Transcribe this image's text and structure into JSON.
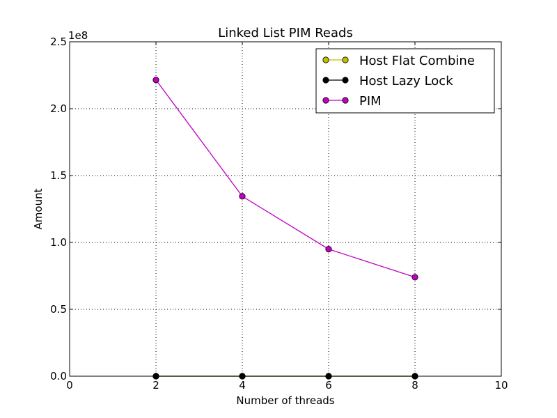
{
  "chart_data": {
    "type": "line",
    "title": "Linked List PIM Reads",
    "xlabel": "Number of threads",
    "ylabel": "Amount",
    "y_offset_label": "1e8",
    "xlim": [
      0,
      10
    ],
    "ylim": [
      0,
      250000000
    ],
    "x_ticks": [
      0,
      2,
      4,
      6,
      8,
      10
    ],
    "x_tick_labels": [
      "0",
      "2",
      "4",
      "6",
      "8",
      "10"
    ],
    "y_ticks": [
      0,
      50000000,
      100000000,
      150000000,
      200000000,
      250000000
    ],
    "y_tick_labels": [
      "0.0",
      "0.5",
      "1.0",
      "1.5",
      "2.0",
      "2.5"
    ],
    "grid": true,
    "legend_position": "top-right",
    "x": [
      2,
      4,
      6,
      8
    ],
    "series": [
      {
        "name": "Host Flat Combine",
        "color": "#bfbf00",
        "values": [
          0,
          0,
          0,
          0
        ]
      },
      {
        "name": "Host Lazy Lock",
        "color": "#000000",
        "values": [
          0,
          0,
          0,
          0
        ]
      },
      {
        "name": "PIM",
        "color": "#bf00bf",
        "values": [
          221500000,
          134500000,
          95000000,
          74000000
        ]
      }
    ]
  }
}
